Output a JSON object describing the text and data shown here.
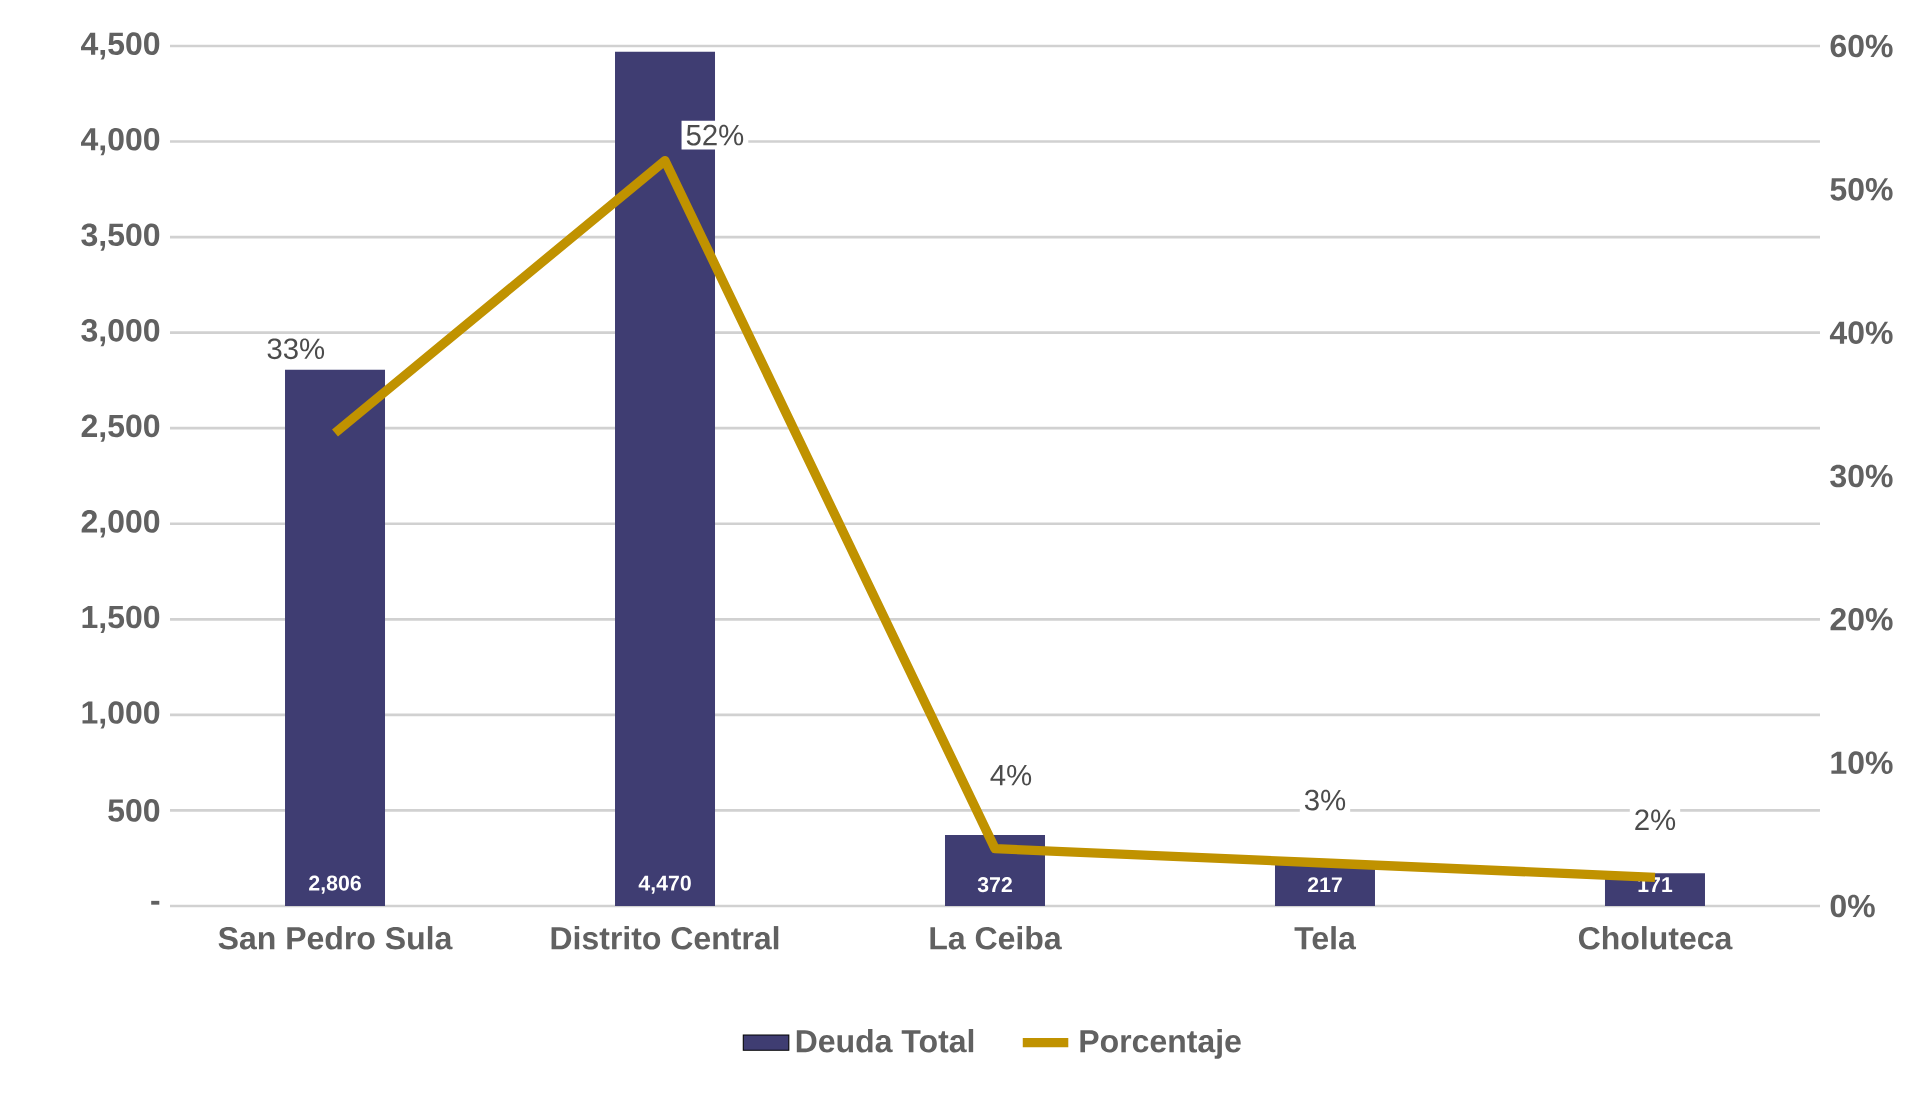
{
  "chart_data": {
    "type": "bar",
    "categories": [
      "San Pedro Sula",
      "Distrito Central",
      "La Ceiba",
      "Tela",
      "Choluteca"
    ],
    "series": [
      {
        "name": "Deuda Total",
        "type": "bar",
        "color": "#3f3d72",
        "values": [
          2806,
          4470,
          372,
          217,
          171
        ],
        "value_labels": [
          "2,806",
          "4,470",
          "372",
          "217",
          "171"
        ]
      },
      {
        "name": "Porcentaje",
        "type": "line",
        "axis": "y2",
        "color": "#c09200",
        "values": [
          33,
          52,
          4,
          3,
          2
        ],
        "value_labels": [
          "33%",
          "52%",
          "4%",
          "3%",
          "2%"
        ]
      }
    ],
    "ylim": [
      0,
      4500
    ],
    "yticks": [
      {
        "value": 0,
        "label": "-"
      },
      {
        "value": 500,
        "label": "500"
      },
      {
        "value": 1000,
        "label": "1,000"
      },
      {
        "value": 1500,
        "label": "1,500"
      },
      {
        "value": 2000,
        "label": "2,000"
      },
      {
        "value": 2500,
        "label": "2,500"
      },
      {
        "value": 3000,
        "label": "3,000"
      },
      {
        "value": 3500,
        "label": "3,500"
      },
      {
        "value": 4000,
        "label": "4,000"
      },
      {
        "value": 4500,
        "label": "4,500"
      }
    ],
    "y2lim": [
      0,
      60
    ],
    "y2ticks": [
      {
        "value": 0,
        "label": "0%"
      },
      {
        "value": 10,
        "label": "10%"
      },
      {
        "value": 20,
        "label": "20%"
      },
      {
        "value": 30,
        "label": "30%"
      },
      {
        "value": 40,
        "label": "40%"
      },
      {
        "value": 50,
        "label": "50%"
      },
      {
        "value": 60,
        "label": "60%"
      }
    ],
    "grid": "y",
    "legend": "bottom",
    "marker": "none",
    "line_style": "solid"
  }
}
